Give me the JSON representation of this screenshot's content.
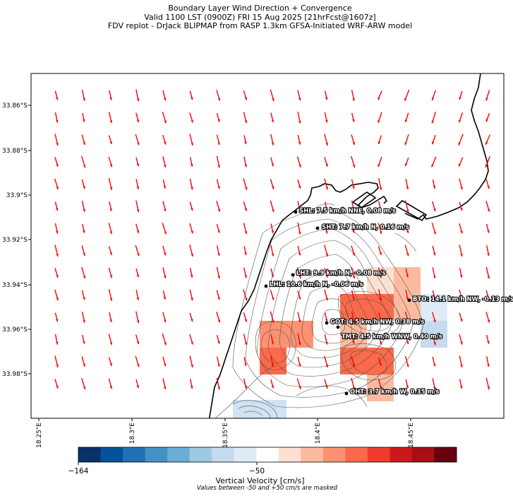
{
  "title": {
    "line1": "Boundary Layer Wind Direction + Convergence",
    "line2": "Valid 1100 LST (0900Z) FRI 15 Aug 2025 [21hrFcst@1607z]",
    "line3": "FDV replot - DrJack BLIPMAP from RASP 1.3km GFSA-Initiated WRF-ARW model"
  },
  "axes": {
    "lat_labels": [
      "33.86°S",
      "33.88°S",
      "33.9°S",
      "33.92°S",
      "33.94°S",
      "33.96°S",
      "33.98°S"
    ],
    "lon_labels": [
      "18.25°E",
      "18.3°E",
      "18.35°E",
      "18.4°E",
      "18.45°E"
    ]
  },
  "stations": [
    {
      "id": "SHL",
      "label": "SHL: 7.5 km/h NNE, 0.08 m/s"
    },
    {
      "id": "SHT",
      "label": "SHT: 7.7 km/h N, 0.16 m/s"
    },
    {
      "id": "LHT",
      "label": "LHT: 9.9 km/h N, -0.08 m/s"
    },
    {
      "id": "LHL",
      "label": "LHL: 10.6 km/h N, -0.06 m/s"
    },
    {
      "id": "BTO",
      "label": "BTO: 14.1 km/h NW, -0.13 m/s"
    },
    {
      "id": "GOT",
      "label": "GOT: 4.5 km/h NW, 0.38 m/s"
    },
    {
      "id": "TMT",
      "label": "TMT: 4.5 km/h WNW, 0.40 m/s"
    },
    {
      "id": "OHT",
      "label": "OHT: 3.7 km/h W, 0.35 m/s"
    }
  ],
  "colorbar": {
    "min_label": "−164",
    "mid_label": "−50",
    "title": "Vertical Velocity [cm/s]",
    "note": "Values between -50 and +50 cm/s are masked",
    "colors": [
      "#08306b",
      "#08519c",
      "#2171b5",
      "#4292c6",
      "#6baed6",
      "#9ecae1",
      "#c6dbef",
      "#deebf7",
      "#ffffff",
      "#fee0d2",
      "#fcbba1",
      "#fc9272",
      "#fb6a4a",
      "#ef3b2c",
      "#cb181d",
      "#a50f15",
      "#67000d"
    ]
  },
  "colors": {
    "arrow": "#ff0000",
    "coast": "#000000",
    "contour": "#555555"
  }
}
